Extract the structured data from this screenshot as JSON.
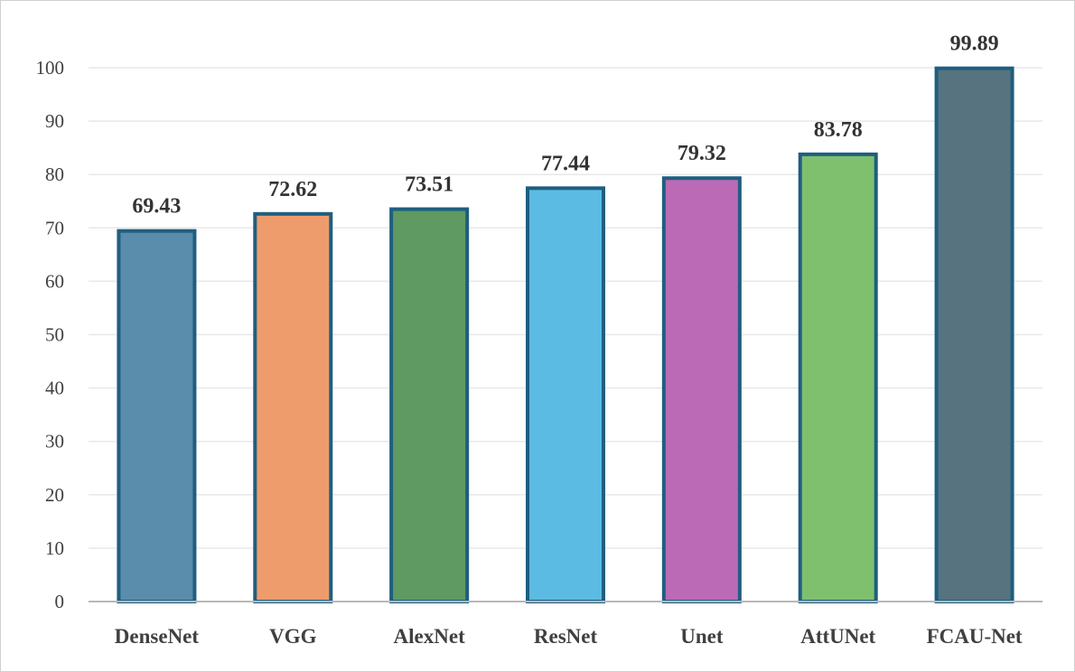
{
  "chart_data": {
    "type": "bar",
    "categories": [
      "DenseNet",
      "VGG",
      "AlexNet",
      "ResNet",
      "Unet",
      "AttUNet",
      "FCAU-Net"
    ],
    "values": [
      69.43,
      72.62,
      73.51,
      77.44,
      79.32,
      83.78,
      99.89
    ],
    "value_labels": [
      "69.43",
      "72.62",
      "73.51",
      "77.44",
      "79.32",
      "83.78",
      "99.89"
    ],
    "colors": [
      "#5a8dab",
      "#ee9c6c",
      "#5f9a62",
      "#5bbbe3",
      "#bb6ab6",
      "#7ec06e",
      "#56737f"
    ],
    "bar_outline_color": "#1f5e80",
    "ylim": [
      0,
      100
    ],
    "yticks": [
      "0",
      "10",
      "20",
      "30",
      "40",
      "50",
      "60",
      "70",
      "80",
      "90",
      "100"
    ],
    "title": "",
    "xlabel": "",
    "ylabel": "",
    "grid": true,
    "legend": "none"
  }
}
